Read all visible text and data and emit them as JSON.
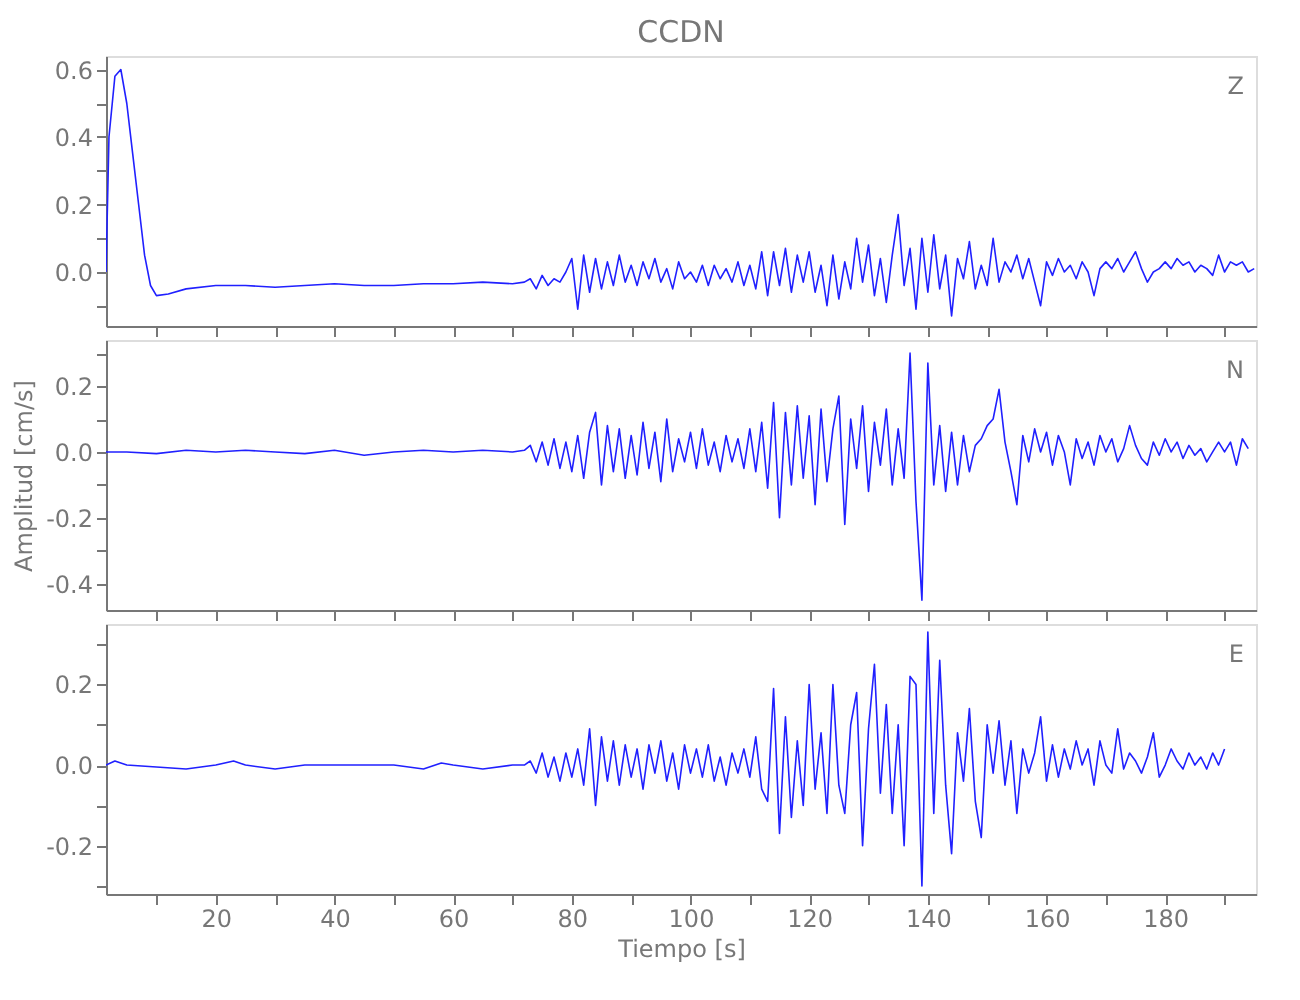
{
  "chart_data": [
    {
      "type": "line",
      "title": "CCDN",
      "annotations": [
        "Z"
      ],
      "tick_labels": "y",
      "grid": false,
      "legend": false,
      "x": [
        1.5,
        2,
        3,
        4,
        5,
        6,
        7,
        8,
        9,
        10,
        12,
        15,
        20,
        25,
        30,
        35,
        40,
        45,
        50,
        55,
        60,
        65,
        70,
        72,
        73,
        74,
        75,
        76,
        77,
        78,
        79,
        80,
        81,
        82,
        83,
        84,
        85,
        86,
        87,
        88,
        89,
        90,
        91,
        92,
        93,
        94,
        95,
        96,
        97,
        98,
        99,
        100,
        101,
        102,
        103,
        104,
        105,
        106,
        107,
        108,
        109,
        110,
        111,
        112,
        113,
        114,
        115,
        116,
        117,
        118,
        119,
        120,
        121,
        122,
        123,
        124,
        125,
        126,
        127,
        128,
        129,
        130,
        131,
        132,
        133,
        134,
        135,
        136,
        137,
        138,
        139,
        140,
        141,
        142,
        143,
        144,
        145,
        146,
        147,
        148,
        149,
        150,
        151,
        152,
        153,
        154,
        155,
        156,
        157,
        158,
        159,
        160,
        161,
        162,
        163,
        164,
        165,
        166,
        167,
        168,
        169,
        170,
        171,
        172,
        173,
        174,
        175,
        176,
        177,
        178,
        179,
        180,
        181,
        182,
        183,
        184,
        185,
        186,
        187,
        188,
        189,
        190,
        191,
        192,
        193,
        194,
        195
      ],
      "series": [
        {
          "color": "#2020ff",
          "values": [
            0.0,
            0.4,
            0.58,
            0.6,
            0.5,
            0.35,
            0.2,
            0.05,
            -0.04,
            -0.07,
            -0.065,
            -0.05,
            -0.04,
            -0.04,
            -0.045,
            -0.04,
            -0.035,
            -0.04,
            -0.04,
            -0.035,
            -0.035,
            -0.03,
            -0.035,
            -0.03,
            -0.02,
            -0.05,
            -0.01,
            -0.04,
            -0.02,
            -0.03,
            0.0,
            0.04,
            -0.11,
            0.05,
            -0.06,
            0.04,
            -0.05,
            0.03,
            -0.04,
            0.05,
            -0.03,
            0.02,
            -0.04,
            0.03,
            -0.02,
            0.04,
            -0.03,
            0.01,
            -0.05,
            0.03,
            -0.02,
            0.0,
            -0.03,
            0.02,
            -0.04,
            0.02,
            -0.02,
            0.01,
            -0.03,
            0.03,
            -0.04,
            0.02,
            -0.05,
            0.06,
            -0.07,
            0.06,
            -0.04,
            0.07,
            -0.06,
            0.05,
            -0.03,
            0.06,
            -0.06,
            0.02,
            -0.1,
            0.05,
            -0.08,
            0.03,
            -0.05,
            0.1,
            -0.03,
            0.08,
            -0.07,
            0.04,
            -0.09,
            0.05,
            0.17,
            -0.04,
            0.07,
            -0.11,
            0.1,
            -0.06,
            0.11,
            -0.05,
            0.05,
            -0.13,
            0.04,
            -0.02,
            0.09,
            -0.05,
            0.02,
            -0.04,
            0.1,
            -0.03,
            0.03,
            0.0,
            0.05,
            -0.02,
            0.04,
            -0.03,
            -0.1,
            0.03,
            -0.01,
            0.04,
            0.0,
            0.02,
            -0.02,
            0.03,
            0.0,
            -0.07,
            0.01,
            0.03,
            0.01,
            0.04,
            0.0,
            0.03,
            0.06,
            0.01,
            -0.03,
            0.0,
            0.01,
            0.03,
            0.01,
            0.04,
            0.02,
            0.03,
            0.0,
            0.02,
            0.01,
            -0.01,
            0.05,
            0.0,
            0.03,
            0.02,
            0.03,
            0.0,
            0.01
          ]
        }
      ],
      "xlim": [
        1.5,
        195.3
      ],
      "ylim": [
        -0.16,
        0.64
      ],
      "xticks": [
        {
          "value": 10,
          "label": null
        },
        20,
        {
          "value": 30,
          "label": null
        },
        40,
        {
          "value": 50,
          "label": null
        },
        60,
        {
          "value": 70,
          "label": null
        },
        80,
        {
          "value": 90,
          "label": null
        },
        100,
        {
          "value": 110,
          "label": null
        },
        120,
        {
          "value": 130,
          "label": null
        },
        140,
        {
          "value": 150,
          "label": null
        },
        160,
        {
          "value": 170,
          "label": null
        },
        180,
        {
          "value": 190,
          "label": null
        }
      ],
      "yticks": [
        {
          "value": -0.1,
          "label": null
        },
        {
          "value": 0,
          "label": "0.0"
        },
        {
          "value": 0.1,
          "label": null
        },
        0.2,
        {
          "value": 0.3,
          "label": null
        },
        0.4,
        {
          "value": 0.5,
          "label": null
        },
        0.6
      ]
    },
    {
      "type": "line",
      "ylabel": "Amplitud [cm/s]",
      "annotations": [
        "N"
      ],
      "tick_labels": "y",
      "grid": false,
      "legend": false,
      "x": [
        1.5,
        5,
        10,
        15,
        20,
        25,
        30,
        35,
        40,
        45,
        50,
        55,
        60,
        65,
        70,
        72,
        73,
        74,
        75,
        76,
        77,
        78,
        79,
        80,
        81,
        82,
        83,
        84,
        85,
        86,
        87,
        88,
        89,
        90,
        91,
        92,
        93,
        94,
        95,
        96,
        97,
        98,
        99,
        100,
        101,
        102,
        103,
        104,
        105,
        106,
        107,
        108,
        109,
        110,
        111,
        112,
        113,
        114,
        115,
        116,
        117,
        118,
        119,
        120,
        121,
        122,
        123,
        124,
        125,
        126,
        127,
        128,
        129,
        130,
        131,
        132,
        133,
        134,
        135,
        136,
        137,
        138,
        139,
        140,
        141,
        142,
        143,
        144,
        145,
        146,
        147,
        148,
        149,
        150,
        151,
        152,
        153,
        154,
        155,
        156,
        157,
        158,
        159,
        160,
        161,
        162,
        163,
        164,
        165,
        166,
        167,
        168,
        169,
        170,
        171,
        172,
        173,
        174,
        175,
        176,
        177,
        178,
        179,
        180,
        181,
        182,
        183,
        184,
        185,
        186,
        187,
        188,
        189,
        190,
        191,
        192,
        193,
        194
      ],
      "series": [
        {
          "color": "#2020ff",
          "values": [
            0.0,
            0.0,
            -0.005,
            0.005,
            0.0,
            0.005,
            0.0,
            -0.005,
            0.005,
            -0.01,
            0.0,
            0.005,
            0.0,
            0.005,
            0.0,
            0.005,
            0.02,
            -0.03,
            0.03,
            -0.04,
            0.04,
            -0.05,
            0.03,
            -0.06,
            0.05,
            -0.08,
            0.06,
            0.12,
            -0.1,
            0.08,
            -0.06,
            0.07,
            -0.08,
            0.05,
            -0.07,
            0.09,
            -0.05,
            0.06,
            -0.09,
            0.1,
            -0.06,
            0.04,
            -0.03,
            0.06,
            -0.05,
            0.07,
            -0.04,
            0.03,
            -0.06,
            0.05,
            -0.03,
            0.04,
            -0.05,
            0.07,
            -0.06,
            0.09,
            -0.11,
            0.15,
            -0.2,
            0.12,
            -0.1,
            0.14,
            -0.08,
            0.11,
            -0.16,
            0.13,
            -0.09,
            0.07,
            0.17,
            -0.22,
            0.1,
            -0.05,
            0.14,
            -0.12,
            0.09,
            -0.04,
            0.13,
            -0.1,
            0.07,
            -0.08,
            0.3,
            -0.15,
            -0.45,
            0.27,
            -0.1,
            0.08,
            -0.12,
            0.06,
            -0.1,
            0.05,
            -0.06,
            0.02,
            0.04,
            0.08,
            0.1,
            0.19,
            0.03,
            -0.06,
            -0.16,
            0.05,
            -0.03,
            0.07,
            0.0,
            0.06,
            -0.04,
            0.05,
            0.0,
            -0.1,
            0.04,
            -0.02,
            0.03,
            -0.04,
            0.05,
            0.0,
            0.04,
            -0.03,
            0.01,
            0.08,
            0.02,
            -0.02,
            -0.04,
            0.03,
            -0.01,
            0.04,
            0.0,
            0.03,
            -0.02,
            0.02,
            -0.01,
            0.01,
            -0.03,
            0.0,
            0.03,
            0.0,
            0.03,
            -0.04,
            0.04,
            0.01
          ]
        }
      ],
      "xlim": [
        1.5,
        195.3
      ],
      "ylim": [
        -0.48,
        0.34
      ],
      "xticks": [
        {
          "value": 10,
          "label": null
        },
        20,
        {
          "value": 30,
          "label": null
        },
        40,
        {
          "value": 50,
          "label": null
        },
        60,
        {
          "value": 70,
          "label": null
        },
        80,
        {
          "value": 90,
          "label": null
        },
        100,
        {
          "value": 110,
          "label": null
        },
        120,
        {
          "value": 130,
          "label": null
        },
        140,
        {
          "value": 150,
          "label": null
        },
        160,
        {
          "value": 170,
          "label": null
        },
        180,
        {
          "value": 190,
          "label": null
        }
      ],
      "yticks": [
        -0.4,
        {
          "value": -0.3,
          "label": null
        },
        -0.2,
        {
          "value": -0.1,
          "label": null
        },
        {
          "value": 0,
          "label": "0.0"
        },
        {
          "value": 0.1,
          "label": null
        },
        0.2,
        {
          "value": 0.3,
          "label": null
        }
      ]
    },
    {
      "type": "line",
      "xlabel": "Tiempo [s]",
      "annotations": [
        "E"
      ],
      "grid": false,
      "legend": false,
      "x": [
        1.5,
        3,
        5,
        10,
        15,
        20,
        23,
        25,
        30,
        35,
        40,
        45,
        50,
        55,
        58,
        60,
        65,
        70,
        72,
        73,
        74,
        75,
        76,
        77,
        78,
        79,
        80,
        81,
        82,
        83,
        84,
        85,
        86,
        87,
        88,
        89,
        90,
        91,
        92,
        93,
        94,
        95,
        96,
        97,
        98,
        99,
        100,
        101,
        102,
        103,
        104,
        105,
        106,
        107,
        108,
        109,
        110,
        111,
        112,
        113,
        114,
        115,
        116,
        117,
        118,
        119,
        120,
        121,
        122,
        123,
        124,
        125,
        126,
        127,
        128,
        129,
        130,
        131,
        132,
        133,
        134,
        135,
        136,
        137,
        138,
        139,
        140,
        141,
        142,
        143,
        144,
        145,
        146,
        147,
        148,
        149,
        150,
        151,
        152,
        153,
        154,
        155,
        156,
        157,
        158,
        159,
        160,
        161,
        162,
        163,
        164,
        165,
        166,
        167,
        168,
        169,
        170,
        171,
        172,
        173,
        174,
        175,
        176,
        177,
        178,
        179,
        180,
        181,
        182,
        183,
        184,
        185,
        186,
        187,
        188,
        189,
        190
      ],
      "series": [
        {
          "color": "#2020ff",
          "values": [
            0.0,
            0.01,
            0.0,
            -0.005,
            -0.01,
            0.0,
            0.01,
            0.0,
            -0.01,
            0.0,
            0.0,
            0.0,
            0.0,
            -0.01,
            0.005,
            0.0,
            -0.01,
            0.0,
            0.0,
            0.01,
            -0.02,
            0.03,
            -0.03,
            0.02,
            -0.04,
            0.03,
            -0.03,
            0.04,
            -0.05,
            0.09,
            -0.1,
            0.07,
            -0.04,
            0.06,
            -0.05,
            0.05,
            -0.03,
            0.04,
            -0.06,
            0.05,
            -0.02,
            0.06,
            -0.04,
            0.03,
            -0.06,
            0.05,
            -0.02,
            0.04,
            -0.03,
            0.05,
            -0.04,
            0.02,
            -0.05,
            0.03,
            -0.02,
            0.04,
            -0.03,
            0.07,
            -0.06,
            -0.09,
            0.19,
            -0.17,
            0.12,
            -0.13,
            0.06,
            -0.1,
            0.2,
            -0.06,
            0.08,
            -0.12,
            0.2,
            -0.05,
            -0.12,
            0.1,
            0.18,
            -0.2,
            0.09,
            0.25,
            -0.07,
            0.15,
            -0.12,
            0.1,
            -0.2,
            0.22,
            0.2,
            -0.3,
            0.33,
            -0.12,
            0.26,
            -0.05,
            -0.22,
            0.08,
            -0.04,
            0.14,
            -0.09,
            -0.18,
            0.1,
            -0.02,
            0.11,
            -0.05,
            0.06,
            -0.12,
            0.04,
            -0.02,
            0.03,
            0.12,
            -0.04,
            0.05,
            -0.03,
            0.04,
            -0.01,
            0.06,
            0.0,
            0.04,
            -0.05,
            0.06,
            0.0,
            -0.02,
            0.09,
            -0.01,
            0.03,
            0.01,
            -0.02,
            0.02,
            0.08,
            -0.03,
            0.0,
            0.04,
            0.01,
            -0.01,
            0.03,
            0.0,
            0.02,
            -0.01,
            0.03,
            0.0,
            0.04
          ]
        }
      ],
      "xlim": [
        1.5,
        195.3
      ],
      "ylim": [
        -0.32,
        0.35
      ],
      "xticks": [
        {
          "value": 10,
          "label": null
        },
        20,
        {
          "value": 30,
          "label": null
        },
        40,
        {
          "value": 50,
          "label": null
        },
        60,
        {
          "value": 70,
          "label": null
        },
        80,
        {
          "value": 90,
          "label": null
        },
        100,
        {
          "value": 110,
          "label": null
        },
        120,
        {
          "value": 130,
          "label": null
        },
        140,
        {
          "value": 150,
          "label": null
        },
        160,
        {
          "value": 170,
          "label": null
        },
        180,
        {
          "value": 190,
          "label": null
        }
      ],
      "yticks": [
        {
          "value": -0.3,
          "label": null
        },
        -0.2,
        {
          "value": -0.1,
          "label": null
        },
        {
          "value": 0,
          "label": "0.0"
        },
        {
          "value": 0.1,
          "label": null
        },
        0.2,
        {
          "value": 0.3,
          "label": null
        }
      ]
    }
  ]
}
